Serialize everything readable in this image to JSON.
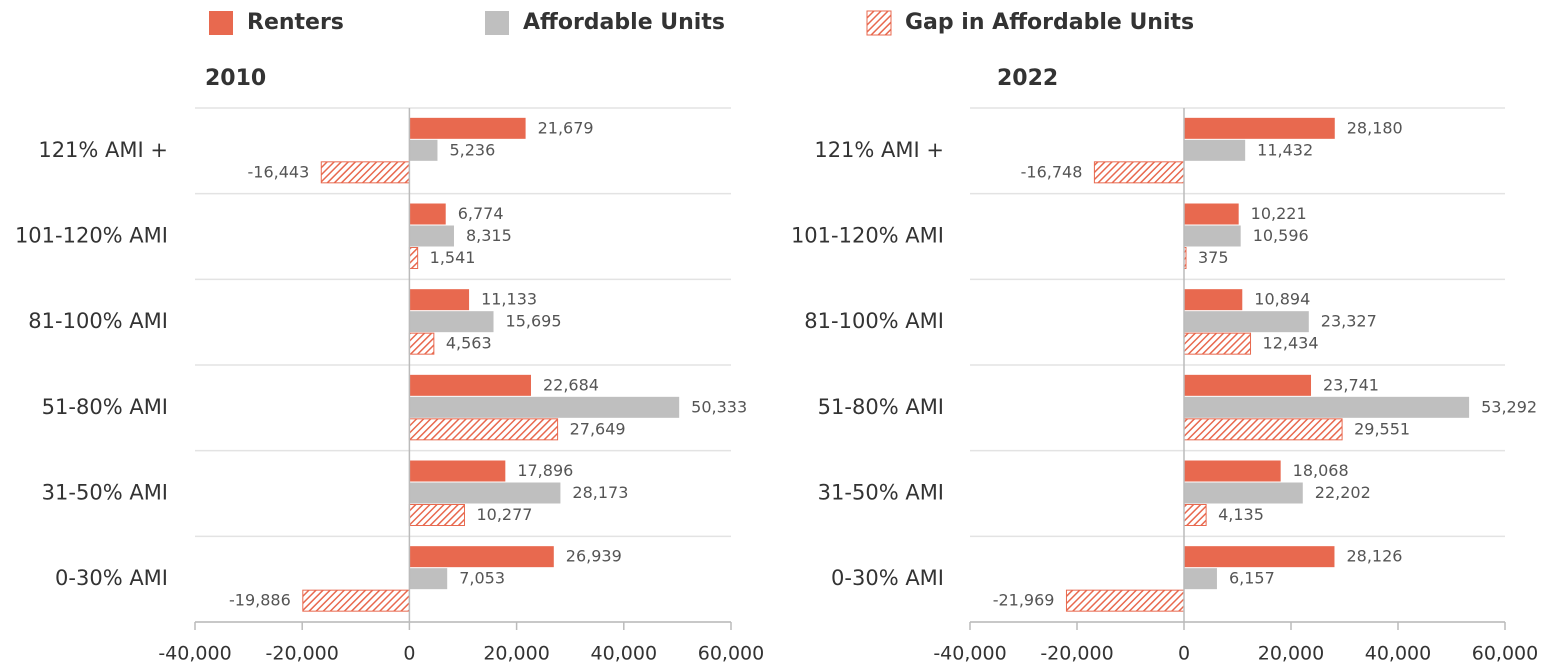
{
  "legend": [
    {
      "name": "Renters",
      "color": "#e8694f",
      "fill": "solid"
    },
    {
      "name": "Affordable Units",
      "color": "#bfbfbf",
      "fill": "solid"
    },
    {
      "name": "Gap in Affordable Units",
      "color": "#e8694f",
      "fill": "hatch"
    }
  ],
  "chart_data": [
    {
      "type": "hbar",
      "title": "2010",
      "categories": [
        "121% AMI +",
        "101-120% AMI",
        "81-100% AMI",
        "51-80% AMI",
        "31-50% AMI",
        "0-30% AMI"
      ],
      "series": [
        {
          "values": [
            21679,
            6774,
            11133,
            22684,
            17896,
            26939
          ],
          "value_labels": [
            "21,679",
            "6,774",
            "11,133",
            "22,684",
            "17,896",
            "26,939"
          ]
        },
        {
          "values": [
            5236,
            8315,
            15695,
            50333,
            28173,
            7053
          ],
          "value_labels": [
            "5,236",
            "8,315",
            "15,695",
            "50,333",
            "28,173",
            "7,053"
          ]
        },
        {
          "values": [
            -16443,
            1541,
            4563,
            27649,
            10277,
            -19886
          ],
          "value_labels": [
            "-16,443",
            "1,541",
            "4,563",
            "27,649",
            "10,277",
            "-19,886"
          ]
        }
      ],
      "xlim": [
        -40000,
        60000
      ],
      "xticks": [
        {
          "value": -40000,
          "label": "-40,000"
        },
        {
          "value": -20000,
          "label": "-20,000"
        },
        0,
        {
          "value": 20000,
          "label": "20,000"
        },
        {
          "value": 40000,
          "label": "40,000"
        },
        {
          "value": 60000,
          "label": "60,000"
        }
      ]
    },
    {
      "type": "hbar",
      "title": "2022",
      "categories": [
        "121% AMI +",
        "101-120% AMI",
        "81-100% AMI",
        "51-80% AMI",
        "31-50% AMI",
        "0-30% AMI"
      ],
      "series": [
        {
          "values": [
            28180,
            10221,
            10894,
            23741,
            18068,
            28126
          ],
          "value_labels": [
            "28,180",
            "10,221",
            "10,894",
            "23,741",
            "18,068",
            "28,126"
          ]
        },
        {
          "values": [
            11432,
            10596,
            23327,
            53292,
            22202,
            6157
          ],
          "value_labels": [
            "11,432",
            "10,596",
            "23,327",
            "53,292",
            "22,202",
            "6,157"
          ]
        },
        {
          "values": [
            -16748,
            375,
            12434,
            29551,
            4135,
            -21969
          ],
          "value_labels": [
            "-16,748",
            "375",
            "12,434",
            "29,551",
            "4,135",
            "-21,969"
          ]
        }
      ],
      "xlim": [
        -40000,
        60000
      ],
      "xticks": [
        {
          "value": -40000,
          "label": "-40,000"
        },
        {
          "value": -20000,
          "label": "-20,000"
        },
        0,
        {
          "value": 20000,
          "label": "20,000"
        },
        {
          "value": 40000,
          "label": "40,000"
        },
        {
          "value": 60000,
          "label": "60,000"
        }
      ]
    }
  ]
}
